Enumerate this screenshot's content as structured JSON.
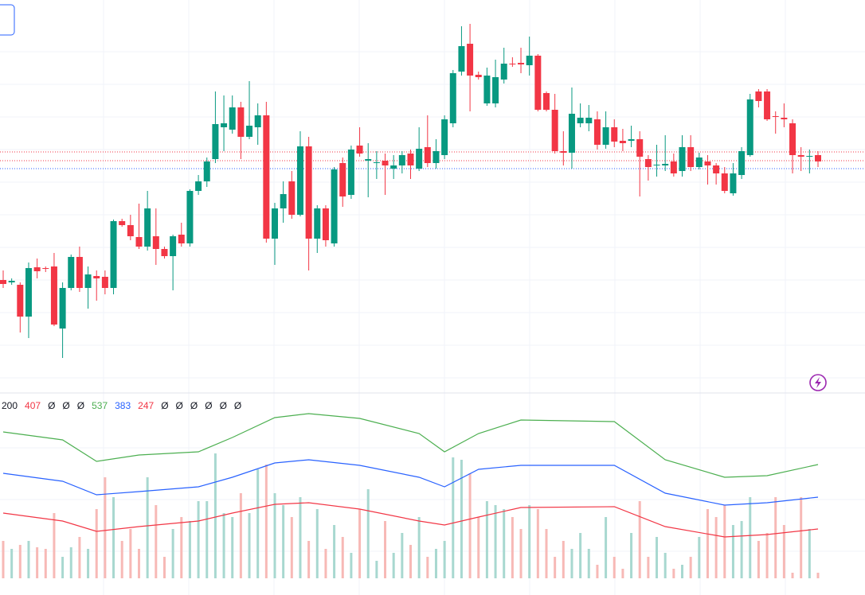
{
  "chart_data": {
    "type": "candlestick",
    "ylim": [
      10,
      500
    ],
    "open": [
      148,
      145,
      142,
      102,
      164,
      163,
      165,
      87,
      138,
      177,
      138,
      153,
      152,
      138,
      222,
      217,
      202,
      190,
      203,
      187,
      178,
      205,
      194,
      260,
      272,
      300,
      340,
      337,
      365,
      328,
      340,
      355,
      200,
      238,
      272,
      230,
      316,
      200,
      238,
      194,
      295,
      255,
      317,
      298,
      295,
      298,
      288,
      292,
      307,
      288,
      315,
      295,
      305,
      345,
      410,
      445,
      406,
      370,
      370,
      400,
      420,
      421,
      418,
      430,
      383,
      362,
      310,
      308,
      345,
      345,
      350,
      318,
      340,
      323,
      323,
      325,
      300,
      292,
      292,
      297,
      285,
      315,
      290,
      297,
      292,
      282,
      257,
      280,
      305,
      385,
      385,
      354,
      352,
      345,
      305,
      303,
      305
    ],
    "high": [
      160,
      150,
      145,
      170,
      175,
      165,
      182,
      145,
      180,
      190,
      165,
      160,
      160,
      224,
      225,
      230,
      244,
      260,
      238,
      190,
      205,
      220,
      262,
      280,
      302,
      385,
      380,
      380,
      372,
      398,
      370,
      372,
      245,
      272,
      285,
      335,
      328,
      242,
      242,
      290,
      302,
      317,
      340,
      320,
      310,
      307,
      305,
      310,
      312,
      340,
      355,
      325,
      355,
      412,
      467,
      470,
      410,
      415,
      425,
      440,
      428,
      440,
      454,
      432,
      385,
      382,
      335,
      390,
      370,
      368,
      360,
      360,
      350,
      338,
      342,
      335,
      305,
      318,
      330,
      307,
      330,
      330,
      308,
      305,
      295,
      290,
      295,
      315,
      382,
      388,
      388,
      360,
      370,
      350,
      315,
      312,
      310
    ],
    "low": [
      138,
      142,
      82,
      75,
      150,
      158,
      90,
      50,
      135,
      133,
      112,
      122,
      130,
      130,
      215,
      198,
      187,
      185,
      167,
      175,
      135,
      190,
      190,
      255,
      265,
      295,
      310,
      332,
      300,
      325,
      318,
      195,
      167,
      220,
      225,
      228,
      160,
      182,
      190,
      190,
      240,
      250,
      303,
      252,
      275,
      255,
      275,
      282,
      275,
      285,
      290,
      288,
      300,
      340,
      405,
      360,
      400,
      367,
      365,
      395,
      416,
      408,
      405,
      360,
      360,
      307,
      292,
      288,
      340,
      335,
      312,
      313,
      315,
      310,
      315,
      253,
      273,
      278,
      285,
      278,
      278,
      285,
      287,
      268,
      268,
      257,
      254,
      275,
      303,
      365,
      348,
      332,
      340,
      282,
      285,
      282,
      290
    ],
    "close": [
      143,
      147,
      102,
      163,
      159,
      162,
      92,
      138,
      177,
      138,
      155,
      150,
      138,
      222,
      217,
      203,
      190,
      238,
      187,
      178,
      203,
      194,
      260,
      272,
      297,
      344,
      345,
      365,
      328,
      342,
      355,
      200,
      238,
      256,
      230,
      316,
      200,
      238,
      198,
      287,
      253,
      312,
      307,
      300,
      296,
      292,
      292,
      305,
      292,
      313,
      295,
      310,
      350,
      408,
      442,
      405,
      403,
      405,
      403,
      420,
      419,
      419,
      430,
      362,
      362,
      310,
      308,
      357,
      352,
      352,
      318,
      340,
      322,
      320,
      325,
      303,
      290,
      293,
      294,
      282,
      315,
      290,
      302,
      292,
      282,
      260,
      282,
      310,
      375,
      373,
      350,
      353,
      350,
      305,
      303,
      304,
      297
    ],
    "up_color": "#089981",
    "down_color": "#f23645",
    "price_lines": [
      {
        "value": 309,
        "color": "#f23645"
      },
      {
        "value": 298,
        "color": "#f23645"
      },
      {
        "value": 288,
        "color": "#2962ff"
      }
    ],
    "volume": {
      "ylim": [
        0,
        227
      ],
      "values": [
        47,
        37,
        42,
        47,
        39,
        37,
        82,
        27,
        39,
        52,
        37,
        87,
        127,
        102,
        47,
        62,
        37,
        127,
        92,
        27,
        62,
        77,
        72,
        97,
        97,
        157,
        82,
        77,
        107,
        82,
        137,
        143,
        107,
        92,
        77,
        102,
        47,
        87,
        37,
        67,
        52,
        32,
        87,
        112,
        22,
        72,
        32,
        57,
        42,
        77,
        27,
        37,
        47,
        152,
        149,
        132,
        77,
        97,
        92,
        87,
        77,
        62,
        92,
        87,
        62,
        27,
        47,
        37,
        57,
        37,
        17,
        77,
        27,
        12,
        57,
        97,
        27,
        52,
        32,
        12,
        17,
        27,
        52,
        87,
        77,
        92,
        67,
        72,
        102,
        47,
        57,
        102,
        67,
        7,
        102,
        62,
        7
      ],
      "up_color": "#a8d8d0",
      "down_color": "#f7b9b6"
    },
    "bands_x": [
      0,
      7,
      11,
      16,
      23,
      27,
      32,
      36,
      42,
      49,
      52,
      56,
      61,
      72,
      78,
      85,
      90,
      96
    ],
    "bands": [
      {
        "color": "#4caf50",
        "values": [
          184,
          174,
          147,
          155,
          159,
          177,
          202,
          207,
          201,
          182,
          159,
          182,
          199,
          197,
          149,
          127,
          129,
          143
        ]
      },
      {
        "color": "#2962ff",
        "values": [
          132,
          122,
          105,
          109,
          115,
          127,
          145,
          149,
          142,
          127,
          115,
          137,
          142,
          142,
          107,
          92,
          95,
          102
        ]
      },
      {
        "color": "#f23645",
        "values": [
          82,
          72,
          59,
          65,
          72,
          82,
          93,
          95,
          87,
          72,
          67,
          77,
          89,
          90,
          65,
          52,
          55,
          62
        ]
      }
    ],
    "legend": [
      {
        "text": "200",
        "color": "#131722"
      },
      {
        "text": "407",
        "color": "#f23645"
      },
      {
        "text": "Ø",
        "color": "#131722"
      },
      {
        "text": "Ø",
        "color": "#131722"
      },
      {
        "text": "Ø",
        "color": "#131722"
      },
      {
        "text": "537",
        "color": "#4caf50"
      },
      {
        "text": "383",
        "color": "#2962ff"
      },
      {
        "text": "247",
        "color": "#f23645"
      },
      {
        "text": "Ø",
        "color": "#131722"
      },
      {
        "text": "Ø",
        "color": "#131722"
      },
      {
        "text": "Ø",
        "color": "#131722"
      },
      {
        "text": "Ø",
        "color": "#131722"
      },
      {
        "text": "Ø",
        "color": "#131722"
      },
      {
        "text": "Ø",
        "color": "#131722"
      }
    ]
  }
}
